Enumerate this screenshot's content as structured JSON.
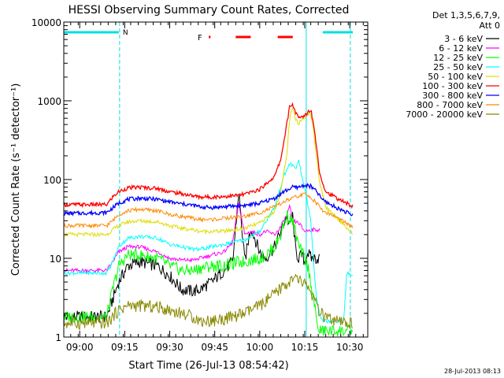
{
  "chart_data": {
    "type": "line",
    "title": "HESSI Observing Summary Count Rates, Corrected",
    "xlabel": "Start Time (26-Jul-13 08:54:42)",
    "ylabel": "Corrected Count Rate (s⁻¹ detector⁻¹)",
    "yscale": "log",
    "xlim_min": [
      534.7,
      636
    ],
    "ylim": [
      1,
      10000
    ],
    "x_ticks": [
      "09:00",
      "09:15",
      "09:30",
      "09:45",
      "10:00",
      "10:15",
      "10:30"
    ],
    "y_ticks": [
      "1",
      "10",
      "100",
      "1000",
      "10000"
    ],
    "legend_header": [
      "Det 1,3,5,6,7,9,",
      "Att 0"
    ],
    "legend_position": "right",
    "footer_timestamp": "28-Jul-2013 08:13",
    "annotations": {
      "N_label": "N",
      "F_label": "F",
      "night_bars": [
        [
          534.7,
          553
        ],
        [
          621,
          631
        ]
      ],
      "flare_bars": [
        [
          583,
          583.6
        ],
        [
          592,
          597
        ],
        [
          606,
          611
        ]
      ],
      "vertical_lines": [
        {
          "x": 553.3,
          "color": "#00e0e0",
          "style": "dashed"
        },
        {
          "x": 630.2,
          "color": "#00e0e0",
          "style": "dashed"
        },
        {
          "x": 615.5,
          "color": "#00e0e0",
          "style": "solid"
        }
      ]
    },
    "series": [
      {
        "name": "3 - 6 keV",
        "color": "#000000",
        "x": [
          534.7,
          549,
          551,
          553,
          556,
          560,
          566,
          570,
          574,
          578,
          580,
          584,
          588,
          591,
          593,
          595,
          597,
          600,
          602,
          605,
          607,
          609,
          610,
          611,
          612,
          613,
          614,
          615,
          616,
          617,
          620
        ],
        "y": [
          1.8,
          1.8,
          3,
          5,
          8,
          9,
          8,
          6,
          4,
          3.8,
          4,
          5,
          7,
          9,
          70,
          9,
          25,
          12,
          10,
          14,
          22,
          35,
          25,
          35,
          12,
          10,
          11,
          9,
          12,
          10,
          10
        ]
      },
      {
        "name": "6 - 12 keV",
        "color": "#ff00ff",
        "x": [
          534.7,
          549,
          551,
          553,
          556,
          560,
          566,
          570,
          574,
          578,
          580,
          584,
          588,
          591,
          593,
          595,
          597,
          600,
          602,
          605,
          607,
          609,
          610,
          611,
          613,
          615,
          617,
          620
        ],
        "y": [
          7,
          7,
          9,
          12,
          14,
          14,
          12,
          10,
          9.5,
          9.5,
          10,
          11,
          12,
          16,
          50,
          20,
          22,
          20,
          22,
          20,
          25,
          35,
          45,
          30,
          28,
          22,
          23,
          23
        ]
      },
      {
        "name": "12 - 25 keV",
        "color": "#00ff00",
        "x": [
          534.7,
          549,
          551,
          553,
          556,
          560,
          566,
          570,
          574,
          578,
          580,
          584,
          588,
          591,
          593,
          595,
          597,
          600,
          602,
          605,
          607,
          609,
          611,
          613,
          614,
          615,
          616,
          617,
          618,
          619,
          620,
          626,
          631
        ],
        "y": [
          1.8,
          1.8,
          4,
          8,
          11,
          11,
          10,
          8,
          7,
          7,
          7.5,
          8,
          8,
          8.5,
          9,
          9,
          9.5,
          10,
          11,
          14,
          20,
          35,
          30,
          14,
          12,
          10,
          8,
          5,
          3,
          1.5,
          1.2,
          1.2,
          1.2
        ]
      },
      {
        "name": "25 - 50 keV",
        "color": "#00ffff",
        "x": [
          534.7,
          549,
          551,
          553,
          556,
          560,
          566,
          570,
          574,
          578,
          580,
          584,
          588,
          591,
          595,
          600,
          605,
          608,
          610,
          612,
          613,
          614,
          615,
          617,
          618,
          619,
          620,
          621,
          623,
          625,
          626,
          628,
          629,
          631
        ],
        "y": [
          6.5,
          6.5,
          9,
          14,
          18,
          19,
          18,
          15,
          14,
          13,
          13,
          14,
          15,
          16,
          17,
          22,
          45,
          110,
          160,
          140,
          170,
          110,
          80,
          30,
          8,
          3,
          2,
          1.6,
          1.6,
          1.6,
          1.6,
          1.6,
          6.5,
          6
        ]
      },
      {
        "name": "50 - 100 keV",
        "color": "#dddd00",
        "x": [
          534.7,
          549,
          551,
          553,
          556,
          560,
          566,
          570,
          574,
          578,
          580,
          584,
          588,
          591,
          595,
          600,
          605,
          607,
          609,
          610,
          611,
          612,
          613,
          614,
          615,
          617,
          618,
          620,
          622,
          625,
          628,
          631
        ],
        "y": [
          20,
          20,
          23,
          26,
          29,
          30,
          29,
          26,
          24,
          23,
          22,
          22,
          22,
          23,
          24,
          28,
          40,
          70,
          200,
          600,
          800,
          560,
          520,
          580,
          640,
          700,
          400,
          90,
          45,
          35,
          27,
          20
        ]
      },
      {
        "name": "100 - 300 keV",
        "color": "#ff0000",
        "x": [
          534.7,
          549,
          551,
          553,
          556,
          560,
          566,
          570,
          574,
          578,
          580,
          584,
          588,
          591,
          595,
          600,
          605,
          607,
          609,
          610,
          611,
          612,
          613,
          614,
          615,
          617,
          618,
          620,
          622,
          625,
          628,
          631
        ],
        "y": [
          48,
          48,
          60,
          70,
          78,
          80,
          77,
          70,
          66,
          62,
          60,
          60,
          61,
          62,
          65,
          75,
          110,
          180,
          500,
          850,
          900,
          700,
          600,
          620,
          650,
          780,
          500,
          120,
          70,
          60,
          52,
          46
        ]
      },
      {
        "name": "300 - 800 keV",
        "color": "#0000ff",
        "x": [
          534.7,
          549,
          553,
          556,
          560,
          566,
          570,
          574,
          578,
          580,
          584,
          588,
          591,
          595,
          600,
          605,
          608,
          611,
          613,
          615,
          617,
          619,
          621,
          625,
          628,
          631
        ],
        "y": [
          37,
          38,
          50,
          56,
          58,
          56,
          52,
          49,
          47,
          45,
          44,
          45,
          46,
          47,
          50,
          58,
          70,
          80,
          80,
          85,
          82,
          70,
          55,
          45,
          40,
          35
        ]
      },
      {
        "name": "800 - 7000 keV",
        "color": "#ff8800",
        "x": [
          534.7,
          549,
          551,
          553,
          556,
          560,
          566,
          570,
          574,
          578,
          580,
          584,
          588,
          591,
          595,
          600,
          605,
          608,
          611,
          613,
          615,
          617,
          619,
          621,
          625,
          628,
          631
        ],
        "y": [
          26,
          26,
          30,
          36,
          40,
          42,
          40,
          36,
          34,
          32,
          31,
          31,
          32,
          33,
          34,
          38,
          45,
          52,
          58,
          62,
          65,
          60,
          50,
          40,
          34,
          29,
          25
        ]
      },
      {
        "name": "7000 - 20000 keV",
        "color": "#888800",
        "x": [
          534.7,
          549,
          551,
          553,
          556,
          560,
          566,
          570,
          574,
          578,
          580,
          584,
          588,
          591,
          595,
          600,
          605,
          608,
          610,
          612,
          614,
          616,
          618,
          620,
          624,
          628,
          631
        ],
        "y": [
          1.5,
          1.5,
          1.8,
          2.2,
          2.5,
          2.5,
          2.4,
          2.2,
          2.0,
          1.8,
          1.6,
          1.6,
          1.7,
          1.8,
          2.0,
          2.5,
          3.5,
          4.5,
          5,
          5.5,
          5,
          4.5,
          3,
          2,
          1.6,
          1.5,
          1.5
        ]
      }
    ]
  }
}
